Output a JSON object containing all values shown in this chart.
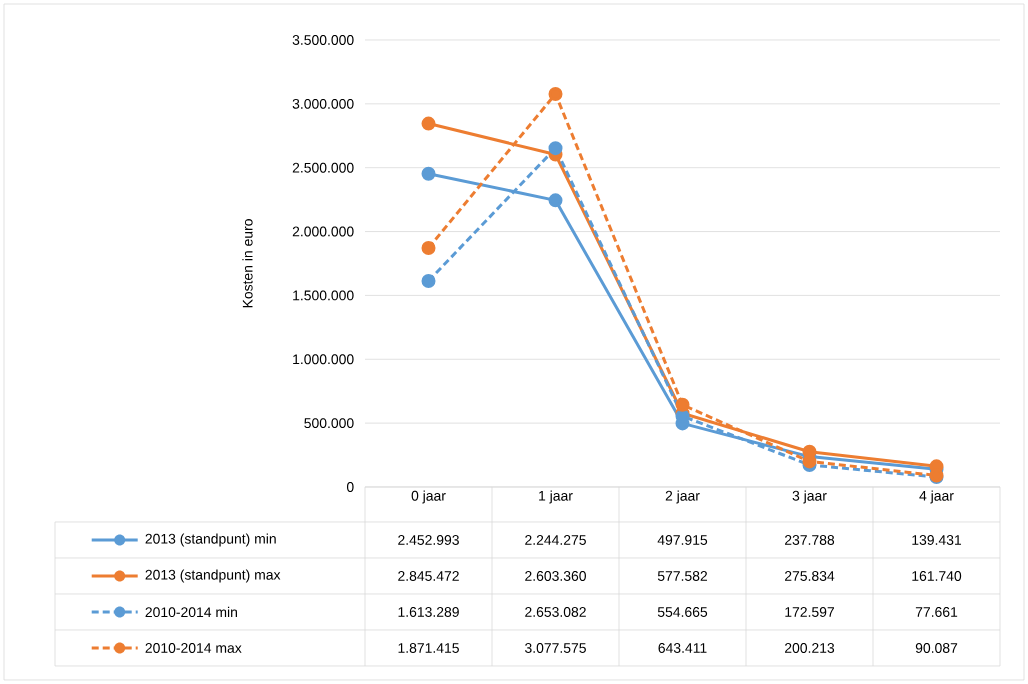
{
  "chart_data": {
    "type": "line",
    "ylabel": "Kosten in euro",
    "categories": [
      "0 jaar",
      "1 jaar",
      "2 jaar",
      "3 jaar",
      "4 jaar"
    ],
    "ylim": [
      0,
      3500000
    ],
    "yticks": [
      0,
      {
        "value": 500000,
        "label": "500.000"
      },
      {
        "value": 1000000,
        "label": "1.000.000"
      },
      {
        "value": 1500000,
        "label": "1.500.000"
      },
      {
        "value": 2000000,
        "label": "2.000.000"
      },
      {
        "value": 2500000,
        "label": "2.500.000"
      },
      {
        "value": 3000000,
        "label": "3.000.000"
      },
      {
        "value": 3500000,
        "label": "3.500.000"
      }
    ],
    "grid": "y",
    "legend": "bottom",
    "marker": "circle",
    "series": [
      {
        "name": "2013 (standpunt) min",
        "color": "#5b9bd5",
        "line_style": "solid",
        "values": [
          2452993,
          2244275,
          497915,
          237788,
          139431
        ],
        "value_labels": [
          "2.452.993",
          "2.244.275",
          "497.915",
          "237.788",
          "139.431"
        ]
      },
      {
        "name": "2013 (standpunt) max",
        "color": "#ed7d31",
        "line_style": "solid",
        "values": [
          2845472,
          2603360,
          577582,
          275834,
          161740
        ],
        "value_labels": [
          "2.845.472",
          "2.603.360",
          "577.582",
          "275.834",
          "161.740"
        ]
      },
      {
        "name": "2010-2014 min",
        "color": "#5b9bd5",
        "line_style": "dashed",
        "values": [
          1613289,
          2653082,
          554665,
          172597,
          77661
        ],
        "value_labels": [
          "1.613.289",
          "2.653.082",
          "554.665",
          "172.597",
          "77.661"
        ]
      },
      {
        "name": "2010-2014 max",
        "color": "#ed7d31",
        "line_style": "dashed",
        "values": [
          1871415,
          3077575,
          643411,
          200213,
          90087
        ],
        "value_labels": [
          "1.871.415",
          "3.077.575",
          "643.411",
          "200.213",
          "90.087"
        ]
      }
    ]
  }
}
